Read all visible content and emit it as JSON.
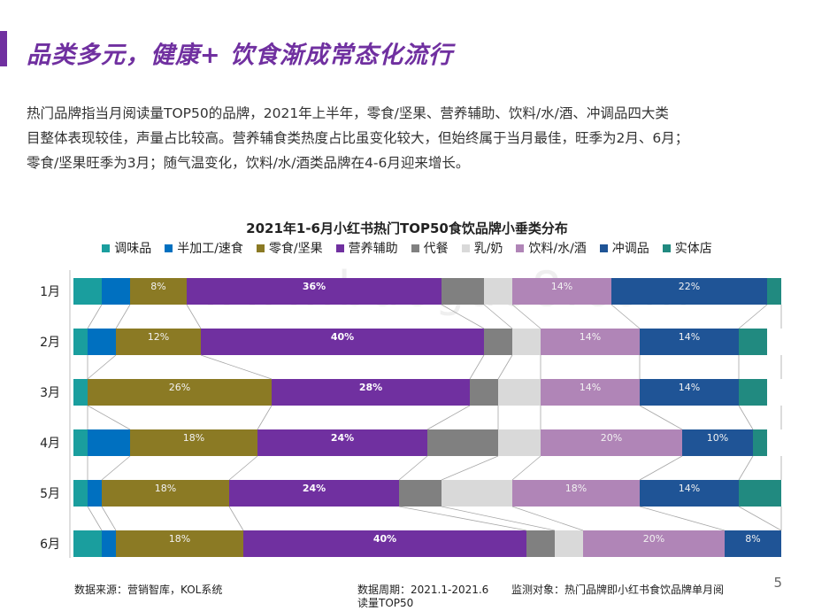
{
  "header": {
    "title": "品类多元，健康+ 饮食渐成常态化流行",
    "paragraph": [
      "热门品牌指当月阅读量TOP50的品牌，2021年上半年，零食/坚果、营养辅助、饮料/水/酒、冲调品四大类",
      "目整体表现较佳，声量占比较高。营养辅食类热度占比虽变化较大，但始终属于当月最佳，旺季为2月、6月；",
      "零食/坚果旺季为3月；随气温变化，饮料/水/酒类品牌在4-6月迎来增长。"
    ]
  },
  "watermark": "www.baogao8.com",
  "chart_data": {
    "type": "bar",
    "orientation": "horizontal-stacked-100",
    "title": "2021年1-6月小红书热门TOP50食饮品牌小垂类分布",
    "categories": [
      "1月",
      "2月",
      "3月",
      "4月",
      "5月",
      "6月"
    ],
    "series": [
      {
        "name": "调味品",
        "color": "#1a9e9e",
        "values": [
          4,
          2,
          2,
          2,
          2,
          4
        ]
      },
      {
        "name": "半加工/速食",
        "color": "#0070c0",
        "values": [
          4,
          4,
          0,
          6,
          2,
          2
        ]
      },
      {
        "name": "零食/坚果",
        "color": "#8b7a24",
        "values": [
          8,
          12,
          26,
          18,
          18,
          18
        ]
      },
      {
        "name": "营养辅助",
        "color": "#7030a0",
        "values": [
          36,
          40,
          28,
          24,
          24,
          40
        ]
      },
      {
        "name": "代餐",
        "color": "#808080",
        "values": [
          6,
          4,
          4,
          10,
          6,
          4
        ]
      },
      {
        "name": "乳/奶",
        "color": "#d9d9d9",
        "values": [
          4,
          4,
          6,
          6,
          10,
          4
        ]
      },
      {
        "name": "饮料/水/酒",
        "color": "#b085b7",
        "values": [
          14,
          14,
          14,
          20,
          18,
          20
        ]
      },
      {
        "name": "冲调品",
        "color": "#1f5496",
        "values": [
          22,
          14,
          14,
          10,
          14,
          8
        ]
      },
      {
        "name": "实体店",
        "color": "#218a80",
        "values": [
          2,
          4,
          4,
          2,
          6,
          0
        ]
      }
    ],
    "labels": [
      [
        null,
        null,
        "8%",
        "36%",
        null,
        null,
        "14%",
        "22%",
        null
      ],
      [
        null,
        null,
        "12%",
        "40%",
        null,
        null,
        "14%",
        "14%",
        null
      ],
      [
        null,
        null,
        "26%",
        "28%",
        null,
        null,
        "14%",
        "14%",
        null
      ],
      [
        null,
        null,
        "18%",
        "24%",
        null,
        null,
        "20%",
        "10%",
        null
      ],
      [
        null,
        null,
        "18%",
        "24%",
        null,
        null,
        "18%",
        "14%",
        null
      ],
      [
        null,
        null,
        "18%",
        "40%",
        null,
        null,
        "20%",
        "8%",
        null
      ]
    ],
    "xlim": [
      0,
      100
    ],
    "legend_position": "top"
  },
  "footer": {
    "source": "数据来源：营销智库，KOL系统",
    "period_line1": "数据周期：2021.1-2021.6",
    "period_line2": "读量TOP50",
    "target": "监测对象：热门品牌即小红书食饮品牌单月阅"
  },
  "page_number": "5"
}
